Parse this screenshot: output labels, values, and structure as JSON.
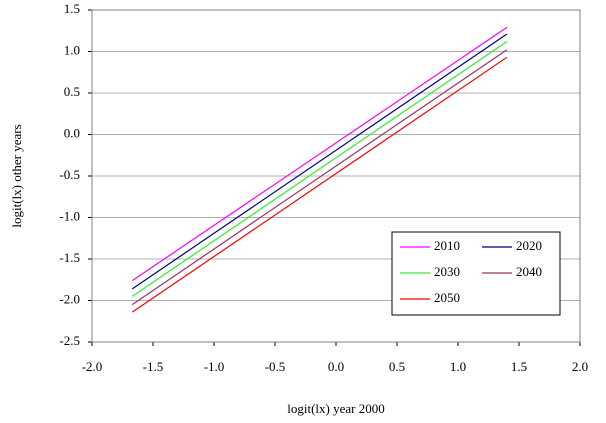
{
  "chart_data": {
    "type": "line",
    "x_label": "logit(lx) year 2000",
    "y_label": "logit(lx) other years",
    "xlim": [
      -2,
      2
    ],
    "ylim": [
      -2.5,
      1.5
    ],
    "xticks": [
      {
        "value": -2,
        "label": "-2.0"
      },
      -1.5,
      {
        "value": -1,
        "label": "-1.0"
      },
      -0.5,
      {
        "value": 0,
        "label": "0.0"
      },
      0.5,
      {
        "value": 1,
        "label": "1.0"
      },
      1.5,
      {
        "value": 2,
        "label": "2.0"
      }
    ],
    "yticks": [
      {
        "value": -2.5,
        "label": "-2.5"
      },
      {
        "value": -2,
        "label": "-2.0"
      },
      -1.5,
      {
        "value": -1,
        "label": "-1.0"
      },
      -0.5,
      {
        "value": 0,
        "label": "0.0"
      },
      0.5,
      {
        "value": 1,
        "label": "1.0"
      },
      1.5
    ],
    "grid": true,
    "legend_position": "lower right",
    "x": [
      -1.67,
      1.4
    ],
    "series": [
      {
        "name": "2010",
        "color": "#ff00ff",
        "values": [
          -1.76,
          1.29
        ]
      },
      {
        "name": "2020",
        "color": "#000080",
        "values": [
          -1.86,
          1.21
        ]
      },
      {
        "name": "2030",
        "color": "#33ee33",
        "values": [
          -1.95,
          1.12
        ]
      },
      {
        "name": "2040",
        "color": "#993366",
        "values": [
          -2.05,
          1.02
        ]
      },
      {
        "name": "2050",
        "color": "#ff0000",
        "values": [
          -2.14,
          0.93
        ]
      }
    ]
  }
}
